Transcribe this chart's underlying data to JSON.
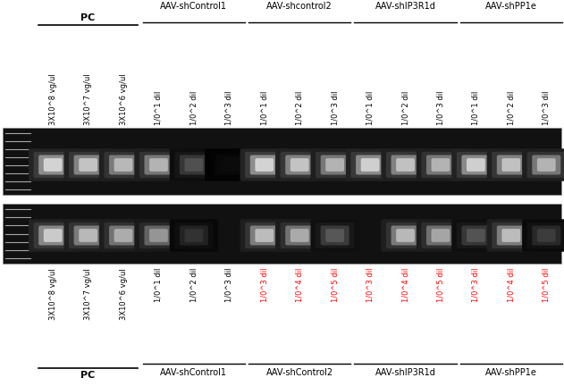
{
  "fig_width": 6.31,
  "fig_height": 4.32,
  "dpi": 100,
  "bg_color": "#ffffff",
  "top_labels": [
    "3X10^8 vg/ul",
    "3X10^7 vg/ul",
    "3X10^6 vg/ul",
    "1/0^1 dil",
    "1/0^2 dil",
    "1/0^3 dil",
    "1/0^1 dil",
    "1/0^2 dil",
    "1/0^3 dil",
    "1/0^1 dil",
    "1/0^2 dil",
    "1/0^3 dil",
    "1/0^1 dil",
    "1/0^2 dil",
    "1/0^3 dil"
  ],
  "bottom_labels": [
    "3X10^8 vg/ul",
    "3X10^7 vg/ul",
    "3X10^6 vg/ul",
    "1/0^1 dil",
    "1/0^2 dil",
    "1/0^3 dil",
    "1/0^3 dil",
    "1/0^4 dil",
    "1/0^5 dil",
    "1/0^3 dil",
    "1/0^4 dil",
    "1/0^5 dil",
    "1/0^3 dil",
    "1/0^4 dil",
    "1/0^5 dil"
  ],
  "bottom_red_indices": [
    6,
    7,
    8,
    9,
    10,
    11,
    12,
    13,
    14
  ],
  "group_labels_top": [
    "AAV-shControl1",
    "AAV-shcontrol2",
    "AAV-shIP3R1d",
    "AAV-shPP1e"
  ],
  "group_labels_bottom": [
    "AAV-shControl1",
    "AAV-shControl2",
    "AAV-shIP3R1d",
    "AAV-shPP1e"
  ],
  "group_lane_ranges": [
    [
      4,
      6
    ],
    [
      7,
      9
    ],
    [
      10,
      12
    ],
    [
      13,
      15
    ]
  ],
  "pc_lanes": [
    1,
    3
  ],
  "gel1_intensities": [
    0,
    0.92,
    0.85,
    0.8,
    0.78,
    0.35,
    0.05,
    0.92,
    0.85,
    0.78,
    0.9,
    0.84,
    0.78,
    0.9,
    0.84,
    0.78
  ],
  "gel2_intensities": [
    0,
    0.88,
    0.8,
    0.75,
    0.65,
    0.22,
    0.0,
    0.82,
    0.74,
    0.38,
    0.0,
    0.8,
    0.72,
    0.36,
    0.82,
    0.26
  ],
  "label_fontsize": 6.0,
  "group_fontsize": 7.0,
  "pc_fontsize": 8.0
}
